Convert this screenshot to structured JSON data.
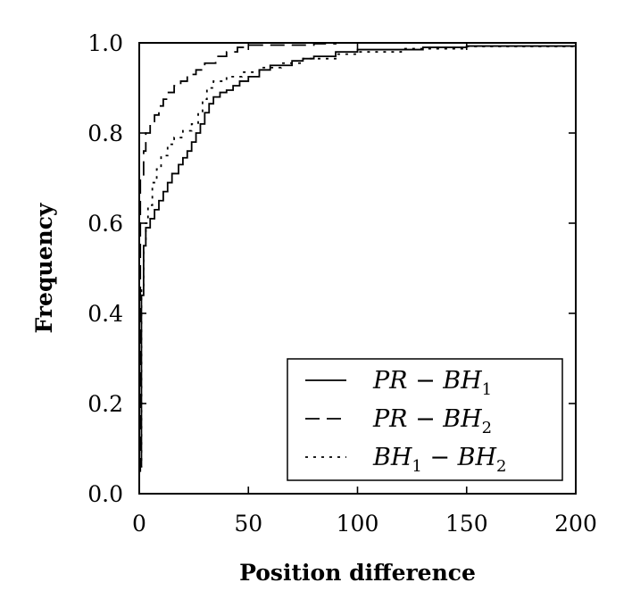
{
  "chart_data": {
    "type": "line",
    "title": "",
    "xlabel": "Position difference",
    "ylabel": "Frequency",
    "xlim": [
      0,
      200
    ],
    "ylim": [
      0.0,
      1.0
    ],
    "x_ticks": [
      "0",
      "50",
      "100",
      "150",
      "200"
    ],
    "y_ticks": [
      "0.0",
      "0.2",
      "0.4",
      "0.6",
      "0.8",
      "1.0"
    ],
    "legend_position": "lower-right",
    "grid": false,
    "series": [
      {
        "name": "PR − BH",
        "subscript": "1",
        "style": "solid",
        "points": [
          [
            0,
            0.06
          ],
          [
            1,
            0.44
          ],
          [
            2,
            0.55
          ],
          [
            3,
            0.59
          ],
          [
            5,
            0.61
          ],
          [
            7,
            0.63
          ],
          [
            9,
            0.65
          ],
          [
            11,
            0.67
          ],
          [
            13,
            0.69
          ],
          [
            15,
            0.71
          ],
          [
            18,
            0.73
          ],
          [
            20,
            0.745
          ],
          [
            22,
            0.76
          ],
          [
            24,
            0.78
          ],
          [
            26,
            0.8
          ],
          [
            28,
            0.82
          ],
          [
            30,
            0.845
          ],
          [
            32,
            0.865
          ],
          [
            34,
            0.88
          ],
          [
            37,
            0.89
          ],
          [
            40,
            0.895
          ],
          [
            43,
            0.905
          ],
          [
            46,
            0.915
          ],
          [
            50,
            0.925
          ],
          [
            55,
            0.94
          ],
          [
            60,
            0.95
          ],
          [
            70,
            0.96
          ],
          [
            75,
            0.965
          ],
          [
            80,
            0.97
          ],
          [
            90,
            0.98
          ],
          [
            100,
            0.985
          ],
          [
            130,
            0.99
          ],
          [
            150,
            0.993
          ],
          [
            200,
            0.997
          ]
        ]
      },
      {
        "name": "PR − BH",
        "subscript": "2",
        "style": "dashed",
        "points": [
          [
            0,
            0.05
          ],
          [
            0.5,
            0.7
          ],
          [
            2,
            0.76
          ],
          [
            3,
            0.8
          ],
          [
            5,
            0.82
          ],
          [
            7,
            0.84
          ],
          [
            9,
            0.86
          ],
          [
            11,
            0.875
          ],
          [
            13,
            0.89
          ],
          [
            16,
            0.905
          ],
          [
            19,
            0.915
          ],
          [
            22,
            0.93
          ],
          [
            26,
            0.94
          ],
          [
            30,
            0.955
          ],
          [
            35,
            0.97
          ],
          [
            40,
            0.98
          ],
          [
            45,
            0.99
          ],
          [
            50,
            0.995
          ],
          [
            80,
            0.998
          ],
          [
            90,
            1.0
          ],
          [
            200,
            1.0
          ]
        ]
      },
      {
        "name": "BH",
        "subscript": "1",
        "name2": "− BH",
        "subscript2": "2",
        "style": "dotted",
        "points": [
          [
            0,
            0.06
          ],
          [
            1,
            0.46
          ],
          [
            2,
            0.55
          ],
          [
            3,
            0.6
          ],
          [
            4,
            0.64
          ],
          [
            6,
            0.69
          ],
          [
            8,
            0.72
          ],
          [
            10,
            0.75
          ],
          [
            13,
            0.775
          ],
          [
            16,
            0.79
          ],
          [
            20,
            0.805
          ],
          [
            24,
            0.82
          ],
          [
            27,
            0.845
          ],
          [
            29,
            0.875
          ],
          [
            31,
            0.9
          ],
          [
            34,
            0.915
          ],
          [
            40,
            0.925
          ],
          [
            47,
            0.935
          ],
          [
            55,
            0.945
          ],
          [
            65,
            0.955
          ],
          [
            75,
            0.965
          ],
          [
            90,
            0.975
          ],
          [
            100,
            0.98
          ],
          [
            120,
            0.987
          ],
          [
            150,
            0.992
          ],
          [
            200,
            0.997
          ]
        ]
      }
    ]
  }
}
